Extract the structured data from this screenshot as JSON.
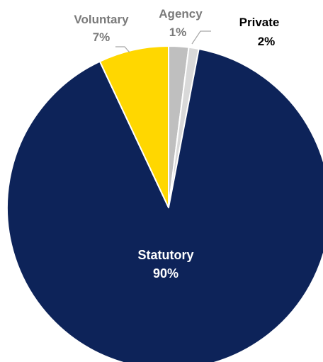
{
  "chart_data": {
    "type": "pie",
    "start_angle_deg": 0,
    "direction": "clockwise",
    "slices": [
      {
        "label": "Private",
        "value": 2,
        "value_label": "2%",
        "color": "#bfbfbf"
      },
      {
        "label": "Agency",
        "value": 1,
        "value_label": "1%",
        "color": "#d9d9d9"
      },
      {
        "label": "Statutory",
        "value": 90,
        "value_label": "90%",
        "color": "#0d2359"
      },
      {
        "label": "Voluntary",
        "value": 7,
        "value_label": "7%",
        "color": "#ffd700"
      }
    ],
    "legend": "none",
    "slice_border_color": "#ffffff"
  }
}
